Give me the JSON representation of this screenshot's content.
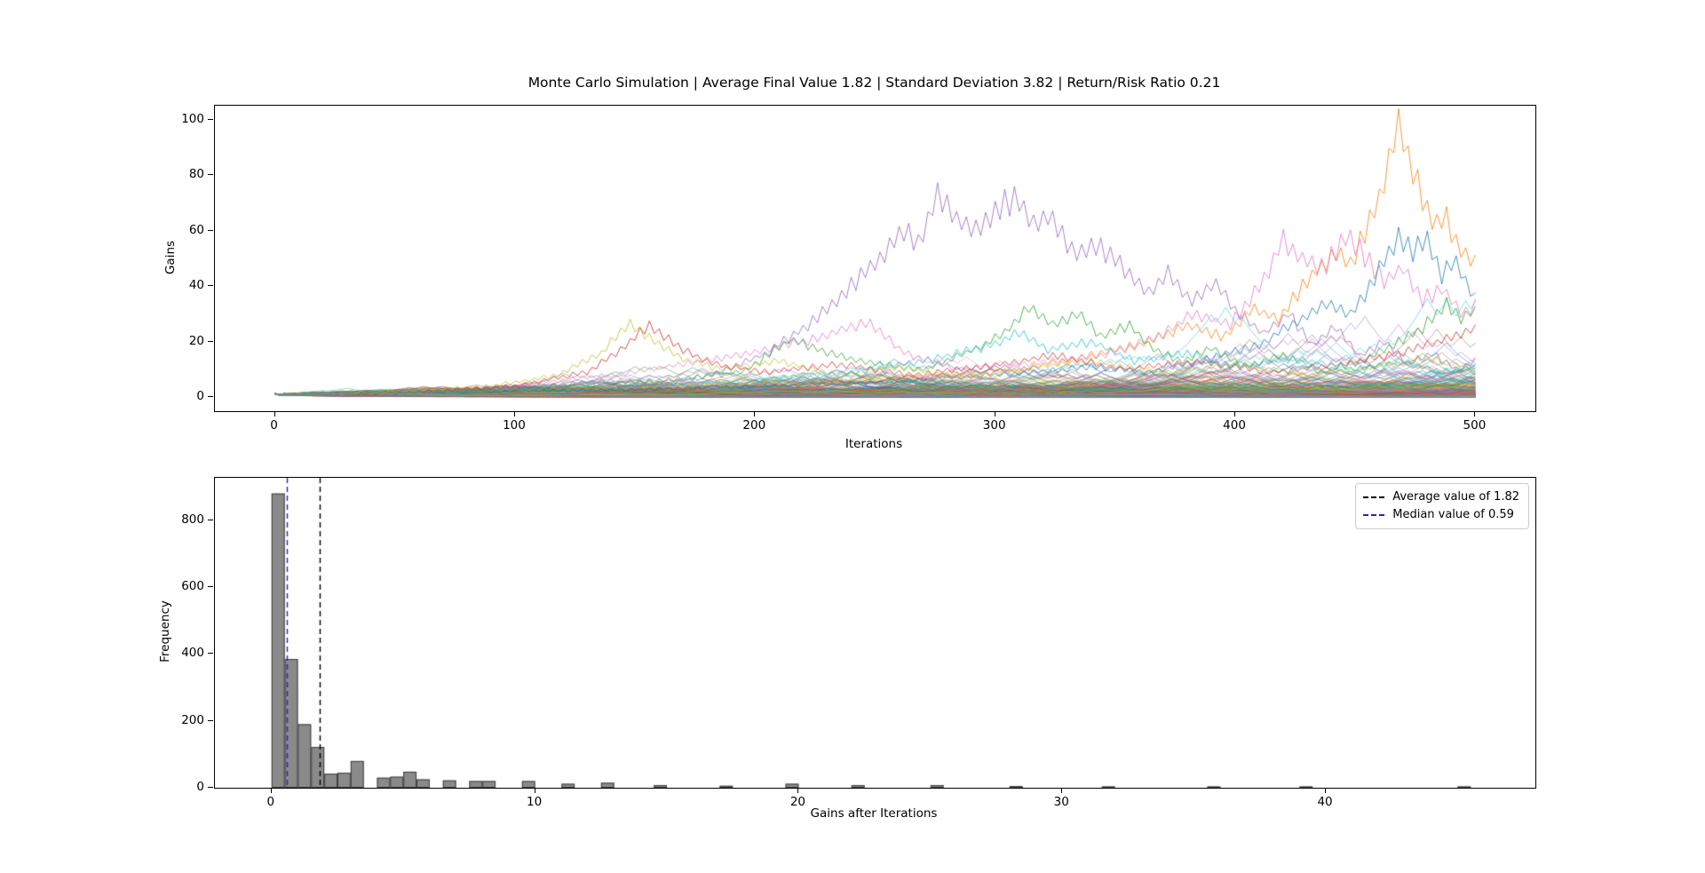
{
  "figure": {
    "background": "#ffffff",
    "title": "Monte Carlo Simulation | Average Final Value 1.82 | Standard Deviation 3.82 | Return/Risk Ratio 0.21"
  },
  "stats": {
    "average_final_value": 1.82,
    "standard_deviation": 3.82,
    "return_risk_ratio": 0.21,
    "median_final_value": 0.59
  },
  "chart_data": [
    {
      "type": "line",
      "title": "Monte Carlo Simulation | Average Final Value 1.82 | Standard Deviation 3.82 | Return/Risk Ratio 0.21",
      "xlabel": "Iterations",
      "ylabel": "Gains",
      "xlim": [
        -25,
        525
      ],
      "ylim": [
        -5,
        105
      ],
      "xticks": [
        0,
        100,
        200,
        300,
        400,
        500
      ],
      "yticks": [
        0,
        20,
        40,
        60,
        80,
        100
      ],
      "grid": false,
      "description": "Many Monte Carlo random-walk gain paths starting at 1 at iteration 0; most stay below 20, a few outliers reach 60-100.",
      "start_value": 1,
      "n_steps": 500,
      "line_alpha": 0.5,
      "palette": [
        "#1f77b4",
        "#ff7f0e",
        "#2ca02c",
        "#d62728",
        "#9467bd",
        "#8c564b",
        "#e377c2",
        "#7f7f7f",
        "#bcbd22",
        "#17becf"
      ],
      "render_hints": {
        "background_walks": {
          "count": 400,
          "seed": 1337,
          "log_step_per_2": 0.0919,
          "drift_per_2": -0.0021,
          "reflect_log": 4.45
        }
      },
      "feature_paths": [
        {
          "name": "purple-outlier",
          "color": "#9467bd",
          "peak": {
            "x": 278,
            "y": 73
          },
          "waypoints": [
            [
              0,
              1
            ],
            [
              40,
              2
            ],
            [
              80,
              3
            ],
            [
              110,
              4
            ],
            [
              140,
              6
            ],
            [
              165,
              5
            ],
            [
              185,
              9
            ],
            [
              205,
              16
            ],
            [
              225,
              28
            ],
            [
              240,
              40
            ],
            [
              252,
              50
            ],
            [
              262,
              60
            ],
            [
              268,
              55
            ],
            [
              276,
              72
            ],
            [
              284,
              64
            ],
            [
              292,
              60
            ],
            [
              300,
              67
            ],
            [
              308,
              72
            ],
            [
              316,
              62
            ],
            [
              322,
              66
            ],
            [
              332,
              52
            ],
            [
              342,
              55
            ],
            [
              352,
              48
            ],
            [
              364,
              38
            ],
            [
              372,
              44
            ],
            [
              382,
              35
            ],
            [
              392,
              41
            ],
            [
              402,
              29
            ],
            [
              412,
              23
            ],
            [
              422,
              30
            ],
            [
              432,
              19
            ],
            [
              442,
              25
            ],
            [
              452,
              15
            ],
            [
              462,
              20
            ],
            [
              472,
              12
            ],
            [
              482,
              16
            ],
            [
              492,
              10
            ],
            [
              500,
              13
            ]
          ]
        },
        {
          "name": "orange-outlier",
          "color": "#ff7f0e",
          "peak": {
            "x": 468,
            "y": 100
          },
          "waypoints": [
            [
              0,
              1
            ],
            [
              60,
              2
            ],
            [
              120,
              3
            ],
            [
              180,
              4
            ],
            [
              240,
              6
            ],
            [
              280,
              8
            ],
            [
              310,
              10
            ],
            [
              335,
              14
            ],
            [
              360,
              19
            ],
            [
              380,
              26
            ],
            [
              395,
              22
            ],
            [
              408,
              32
            ],
            [
              418,
              28
            ],
            [
              430,
              42
            ],
            [
              442,
              52
            ],
            [
              448,
              48
            ],
            [
              455,
              62
            ],
            [
              460,
              72
            ],
            [
              464,
              85
            ],
            [
              468,
              100
            ],
            [
              472,
              88
            ],
            [
              477,
              74
            ],
            [
              483,
              60
            ],
            [
              488,
              65
            ],
            [
              493,
              53
            ],
            [
              500,
              49
            ]
          ]
        },
        {
          "name": "pink-outlier",
          "color": "#e377c2",
          "peak": {
            "x": 420,
            "y": 58
          },
          "waypoints": [
            [
              0,
              1
            ],
            [
              60,
              2
            ],
            [
              100,
              4
            ],
            [
              140,
              8
            ],
            [
              170,
              12
            ],
            [
              200,
              16
            ],
            [
              225,
              21
            ],
            [
              247,
              27
            ],
            [
              262,
              16
            ],
            [
              285,
              10
            ],
            [
              315,
              12
            ],
            [
              345,
              15
            ],
            [
              368,
              22
            ],
            [
              383,
              30
            ],
            [
              398,
              26
            ],
            [
              410,
              40
            ],
            [
              420,
              56
            ],
            [
              427,
              50
            ],
            [
              437,
              46
            ],
            [
              446,
              59
            ],
            [
              453,
              52
            ],
            [
              462,
              42
            ],
            [
              470,
              46
            ],
            [
              478,
              35
            ],
            [
              486,
              39
            ],
            [
              494,
              30
            ],
            [
              500,
              33
            ]
          ]
        },
        {
          "name": "blue-outlier",
          "color": "#1f77b4",
          "peak": {
            "x": 468,
            "y": 58
          },
          "waypoints": [
            [
              0,
              1
            ],
            [
              80,
              2
            ],
            [
              160,
              3
            ],
            [
              240,
              5
            ],
            [
              300,
              8
            ],
            [
              340,
              11
            ],
            [
              365,
              9
            ],
            [
              390,
              14
            ],
            [
              410,
              19
            ],
            [
              425,
              27
            ],
            [
              438,
              34
            ],
            [
              448,
              29
            ],
            [
              456,
              40
            ],
            [
              463,
              50
            ],
            [
              468,
              58
            ],
            [
              474,
              53
            ],
            [
              480,
              57
            ],
            [
              486,
              44
            ],
            [
              492,
              49
            ],
            [
              500,
              35
            ]
          ]
        },
        {
          "name": "green-path",
          "color": "#2ca02c",
          "peak": {
            "x": 314,
            "y": 33
          },
          "waypoints": [
            [
              0,
              1
            ],
            [
              60,
              2
            ],
            [
              120,
              4
            ],
            [
              160,
              6
            ],
            [
              195,
              9
            ],
            [
              215,
              21
            ],
            [
              230,
              16
            ],
            [
              250,
              12
            ],
            [
              270,
              10
            ],
            [
              288,
              16
            ],
            [
              302,
              22
            ],
            [
              314,
              32
            ],
            [
              324,
              26
            ],
            [
              334,
              30
            ],
            [
              344,
              22
            ],
            [
              356,
              26
            ],
            [
              366,
              17
            ],
            [
              378,
              13
            ],
            [
              390,
              18
            ],
            [
              404,
              11
            ],
            [
              420,
              15
            ],
            [
              436,
              9
            ],
            [
              452,
              13
            ],
            [
              466,
              19
            ],
            [
              478,
              25
            ],
            [
              488,
              34
            ],
            [
              494,
              29
            ],
            [
              500,
              31
            ]
          ]
        },
        {
          "name": "olive-path",
          "color": "#bcbd22",
          "peak": {
            "x": 148,
            "y": 27
          },
          "waypoints": [
            [
              0,
              1
            ],
            [
              50,
              2
            ],
            [
              90,
              4
            ],
            [
              118,
              8
            ],
            [
              136,
              16
            ],
            [
              148,
              27
            ],
            [
              158,
              20
            ],
            [
              170,
              14
            ],
            [
              185,
              10
            ],
            [
              210,
              13
            ],
            [
              235,
              8
            ],
            [
              260,
              11
            ],
            [
              285,
              7
            ],
            [
              310,
              10
            ],
            [
              340,
              13
            ],
            [
              370,
              9
            ],
            [
              400,
              12
            ],
            [
              430,
              8
            ],
            [
              460,
              11
            ],
            [
              480,
              14
            ],
            [
              500,
              10
            ]
          ]
        },
        {
          "name": "red-path",
          "color": "#d62728",
          "peak": {
            "x": 156,
            "y": 26
          },
          "waypoints": [
            [
              0,
              1
            ],
            [
              60,
              2
            ],
            [
              100,
              4
            ],
            [
              130,
              9
            ],
            [
              145,
              18
            ],
            [
              156,
              26
            ],
            [
              168,
              18
            ],
            [
              182,
              12
            ],
            [
              205,
              9
            ],
            [
              235,
              12
            ],
            [
              265,
              8
            ],
            [
              295,
              11
            ],
            [
              325,
              15
            ],
            [
              355,
              10
            ],
            [
              385,
              13
            ],
            [
              415,
              9
            ],
            [
              445,
              12
            ],
            [
              470,
              16
            ],
            [
              485,
              20
            ],
            [
              500,
              25
            ]
          ]
        },
        {
          "name": "cyan-path",
          "color": "#17becf",
          "peak": {
            "x": 310,
            "y": 23
          },
          "waypoints": [
            [
              0,
              1
            ],
            [
              70,
              2
            ],
            [
              140,
              4
            ],
            [
              200,
              6
            ],
            [
              240,
              9
            ],
            [
              270,
              13
            ],
            [
              295,
              18
            ],
            [
              310,
              23
            ],
            [
              322,
              17
            ],
            [
              340,
              20
            ],
            [
              358,
              13
            ],
            [
              380,
              16
            ],
            [
              400,
              11
            ],
            [
              425,
              14
            ],
            [
              450,
              10
            ],
            [
              470,
              13
            ],
            [
              485,
              9
            ],
            [
              500,
              11
            ]
          ]
        }
      ]
    },
    {
      "type": "histogram",
      "xlabel": "Gains after Iterations",
      "ylabel": "Frequency",
      "xlim": [
        -2.15,
        47.95
      ],
      "ylim": [
        0,
        927
      ],
      "xticks": [
        0,
        10,
        20,
        30,
        40
      ],
      "yticks": [
        0,
        200,
        400,
        600,
        800
      ],
      "grid": false,
      "bar_fill": "#8a8a8a",
      "bar_edge": "#3f3f3f",
      "bin_start": 0,
      "bin_width": 0.5,
      "bin_counts": [
        880,
        385,
        190,
        122,
        42,
        45,
        80,
        0,
        30,
        33,
        48,
        25,
        0,
        22,
        0,
        20,
        20,
        0,
        0,
        20,
        0,
        0,
        12,
        0,
        0,
        15,
        0,
        0,
        0,
        8,
        0,
        0,
        0,
        0,
        6,
        0,
        0,
        0,
        0,
        12,
        0,
        0,
        0,
        0,
        8,
        0,
        0,
        0,
        0,
        0,
        8,
        0,
        0,
        0,
        0,
        0,
        5,
        0,
        0,
        0,
        0,
        0,
        0,
        4,
        0,
        0,
        0,
        0,
        0,
        0,
        0,
        4,
        0,
        0,
        0,
        0,
        0,
        0,
        4,
        0,
        0,
        0,
        0,
        0,
        0,
        0,
        0,
        0,
        0,
        0,
        4
      ],
      "vlines": [
        {
          "value": 1.82,
          "color": "#000000",
          "style": "dashed",
          "label": "Average value of 1.82"
        },
        {
          "value": 0.59,
          "color": "#2222cc",
          "style": "dashed",
          "label": "Median value of 0.59"
        }
      ],
      "legend": {
        "position": "upper right",
        "entries": [
          "Average value of 1.82",
          "Median value of 0.59"
        ]
      }
    }
  ]
}
